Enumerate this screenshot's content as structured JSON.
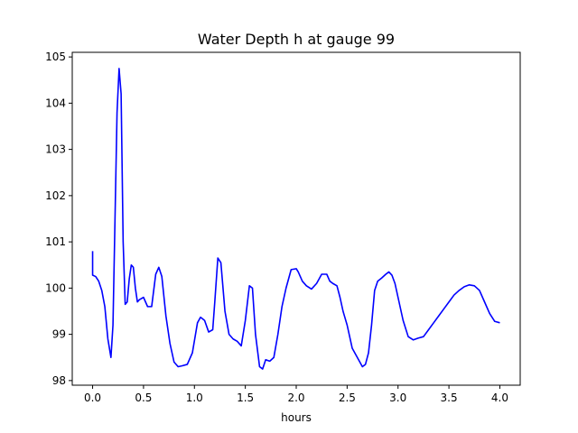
{
  "chart_data": {
    "type": "line",
    "title": "Water Depth h at gauge 99",
    "xlabel": "hours",
    "ylabel": "",
    "xlim": [
      -0.2,
      4.2
    ],
    "ylim": [
      97.9,
      105.1
    ],
    "xticks": [
      0.0,
      0.5,
      1.0,
      1.5,
      2.0,
      2.5,
      3.0,
      3.5,
      4.0
    ],
    "xtick_labels": [
      "0.0",
      "0.5",
      "1.0",
      "1.5",
      "2.0",
      "2.5",
      "3.0",
      "3.5",
      "4.0"
    ],
    "yticks": [
      98,
      99,
      100,
      101,
      102,
      103,
      104,
      105
    ],
    "ytick_labels": [
      "98",
      "99",
      "100",
      "101",
      "102",
      "103",
      "104",
      "105"
    ],
    "grid": false,
    "legend": "none",
    "series": [
      {
        "color": "#0000ff",
        "x": [
          0.0,
          0.0,
          0.03,
          0.06,
          0.09,
          0.12,
          0.15,
          0.18,
          0.2,
          0.22,
          0.24,
          0.26,
          0.28,
          0.3,
          0.32,
          0.34,
          0.36,
          0.38,
          0.4,
          0.42,
          0.44,
          0.46,
          0.5,
          0.54,
          0.58,
          0.62,
          0.65,
          0.68,
          0.72,
          0.76,
          0.8,
          0.84,
          0.88,
          0.93,
          0.98,
          1.03,
          1.06,
          1.1,
          1.14,
          1.18,
          1.2,
          1.23,
          1.26,
          1.3,
          1.34,
          1.38,
          1.42,
          1.46,
          1.5,
          1.54,
          1.57,
          1.6,
          1.64,
          1.67,
          1.7,
          1.74,
          1.78,
          1.82,
          1.86,
          1.9,
          1.95,
          2.0,
          2.02,
          2.06,
          2.1,
          2.15,
          2.2,
          2.25,
          2.3,
          2.33,
          2.36,
          2.4,
          2.43,
          2.46,
          2.5,
          2.55,
          2.6,
          2.65,
          2.68,
          2.71,
          2.74,
          2.77,
          2.8,
          2.84,
          2.88,
          2.91,
          2.94,
          2.97,
          3.0,
          3.05,
          3.1,
          3.15,
          3.2,
          3.25,
          3.3,
          3.35,
          3.4,
          3.45,
          3.5,
          3.55,
          3.6,
          3.65,
          3.7,
          3.75,
          3.8,
          3.85,
          3.9,
          3.95,
          4.0
        ],
        "y": [
          100.8,
          100.28,
          100.25,
          100.15,
          99.95,
          99.6,
          98.9,
          98.5,
          99.2,
          101.5,
          103.8,
          104.75,
          104.2,
          101.0,
          99.65,
          99.7,
          100.2,
          100.5,
          100.45,
          100.0,
          99.7,
          99.75,
          99.8,
          99.6,
          99.6,
          100.3,
          100.45,
          100.25,
          99.4,
          98.8,
          98.4,
          98.3,
          98.32,
          98.35,
          98.6,
          99.25,
          99.37,
          99.3,
          99.05,
          99.1,
          99.7,
          100.65,
          100.55,
          99.5,
          99.0,
          98.9,
          98.85,
          98.75,
          99.3,
          100.05,
          100.0,
          99.0,
          98.3,
          98.25,
          98.45,
          98.42,
          98.5,
          99.0,
          99.6,
          100.0,
          100.4,
          100.42,
          100.35,
          100.15,
          100.05,
          99.98,
          100.1,
          100.3,
          100.3,
          100.15,
          100.1,
          100.05,
          99.8,
          99.5,
          99.2,
          98.7,
          98.5,
          98.3,
          98.35,
          98.6,
          99.2,
          99.95,
          100.15,
          100.22,
          100.3,
          100.35,
          100.28,
          100.1,
          99.8,
          99.3,
          98.95,
          98.88,
          98.92,
          98.95,
          99.1,
          99.25,
          99.4,
          99.55,
          99.7,
          99.85,
          99.95,
          100.03,
          100.07,
          100.05,
          99.95,
          99.7,
          99.45,
          99.28,
          99.25
        ]
      }
    ]
  }
}
